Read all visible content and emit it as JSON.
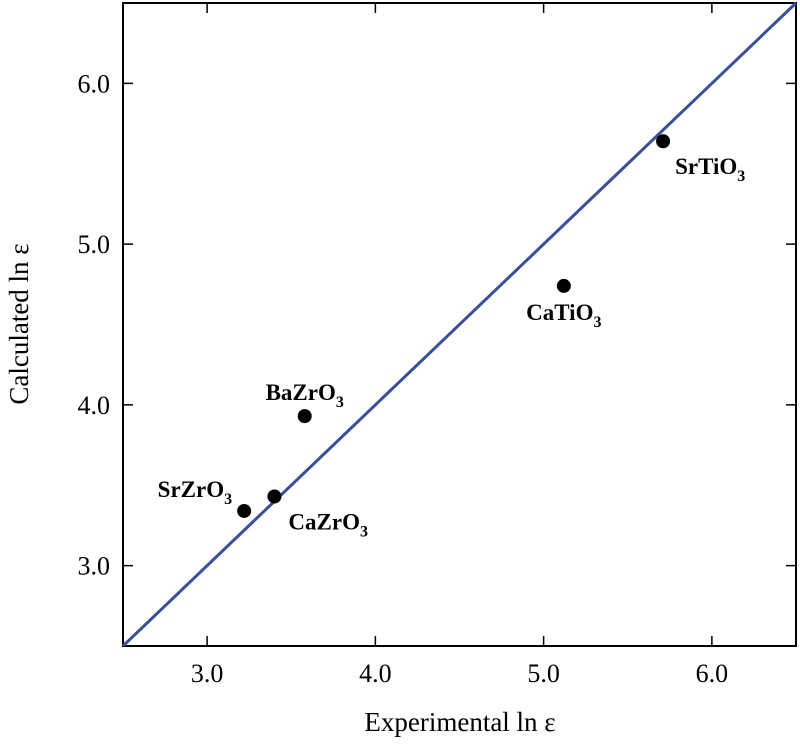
{
  "chart_data": {
    "type": "scatter",
    "xlabel": "Experimental ln ε",
    "ylabel": "Calculated ln ε",
    "xlim": [
      2.5,
      6.5
    ],
    "ylim": [
      2.5,
      6.5
    ],
    "x_ticks": [
      "3.0",
      "4.0",
      "5.0",
      "6.0"
    ],
    "y_ticks": [
      "3.0",
      "4.0",
      "5.0",
      "6.0"
    ],
    "grid": false,
    "reference_line": {
      "type": "y=x",
      "color": "#3a4f9a"
    },
    "marker_color": "#000000",
    "points": [
      {
        "formula": "SrZrO",
        "subscript": "3",
        "x": 3.22,
        "y": 3.34
      },
      {
        "formula": "CaZrO",
        "subscript": "3",
        "x": 3.4,
        "y": 3.43
      },
      {
        "formula": "BaZrO",
        "subscript": "3",
        "x": 3.58,
        "y": 3.93
      },
      {
        "formula": "CaTiO",
        "subscript": "3",
        "x": 5.12,
        "y": 4.74
      },
      {
        "formula": "SrTiO",
        "subscript": "3",
        "x": 5.71,
        "y": 5.64
      }
    ]
  }
}
